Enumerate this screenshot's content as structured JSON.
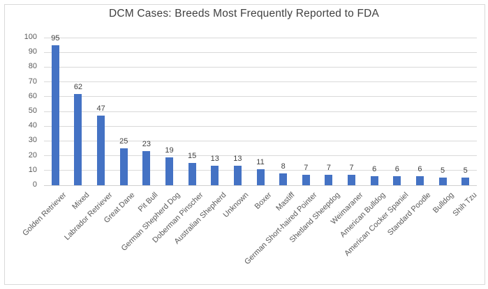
{
  "window": {
    "background": "#FFFFFF",
    "frame_border_color": "#D9D9D9"
  },
  "chart_data": {
    "type": "bar",
    "title": "DCM Cases: Breeds Most Frequently Reported to FDA",
    "categories": [
      "Golden Retriever",
      "Mixed",
      "Labrador Retriever",
      "Great Dane",
      "Pit Bull",
      "German Shepherd Dog",
      "Doberman Pinscher",
      "Australian Shepherd",
      "Unknown",
      "Boxer",
      "Mastiff",
      "German Short-haired Pointer",
      "Shetland Sheepdog",
      "Weimaraner",
      "American Bulldog",
      "American Cocker Spaniel",
      "Standard Poodle",
      "Bulldog",
      "Shih Tzu"
    ],
    "values": [
      95,
      62,
      47,
      25,
      23,
      19,
      15,
      13,
      13,
      11,
      8,
      7,
      7,
      7,
      6,
      6,
      6,
      5,
      5
    ],
    "xlabel": "",
    "ylabel": "",
    "ylim": [
      0,
      100
    ],
    "ytick_step": 10,
    "grid": true,
    "legend": "none",
    "data_labels": true,
    "bar_color": "#4472C4",
    "gridline_color": "#D9D9D9",
    "axis_line_color": "#D0D0D0",
    "tick_label_color": "#595959",
    "data_label_color": "#404040",
    "title_color": "#404040"
  }
}
